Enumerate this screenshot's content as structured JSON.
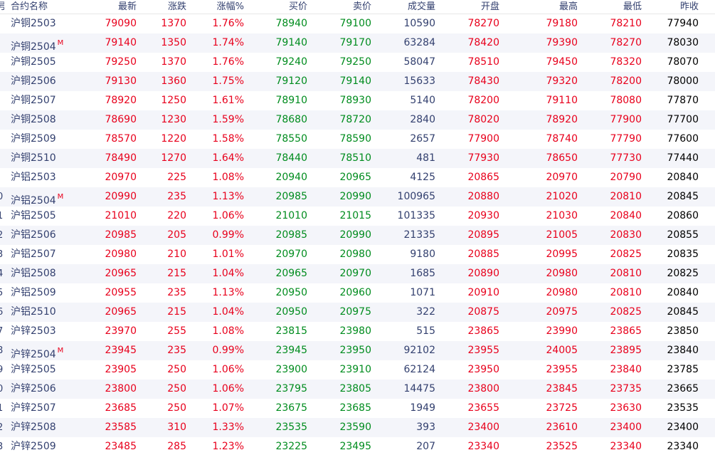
{
  "header": {
    "index": "号",
    "name": "合约名称",
    "last": "最新",
    "change": "涨跌",
    "change_pct": "涨幅%",
    "bid": "买价",
    "ask": "卖价",
    "volume": "成交量",
    "open": "开盘",
    "high": "最高",
    "low": "最低",
    "prev_close": "昨收"
  },
  "colors": {
    "up": "#e8001c",
    "bid_ask": "#008c1e",
    "volume": "#33406f",
    "header_text": "#33406f",
    "alt_row": "#f4f5fa"
  },
  "rows": [
    {
      "index": "",
      "name": "沪铜2503",
      "mark": "",
      "last": "79090",
      "change": "1370",
      "change_pct": "1.76%",
      "bid": "78940",
      "ask": "79100",
      "volume": "10590",
      "open": "78270",
      "high": "79180",
      "low": "78210",
      "prev_close": "77940"
    },
    {
      "index": "",
      "name": "沪铜2504",
      "mark": "M",
      "last": "79140",
      "change": "1350",
      "change_pct": "1.74%",
      "bid": "79140",
      "ask": "79170",
      "volume": "63284",
      "open": "78420",
      "high": "79390",
      "low": "78270",
      "prev_close": "78030"
    },
    {
      "index": "",
      "name": "沪铜2505",
      "mark": "",
      "last": "79250",
      "change": "1370",
      "change_pct": "1.76%",
      "bid": "79240",
      "ask": "79250",
      "volume": "58047",
      "open": "78510",
      "high": "79450",
      "low": "78320",
      "prev_close": "78070"
    },
    {
      "index": "",
      "name": "沪铜2506",
      "mark": "",
      "last": "79130",
      "change": "1360",
      "change_pct": "1.75%",
      "bid": "79120",
      "ask": "79140",
      "volume": "15633",
      "open": "78430",
      "high": "79320",
      "low": "78200",
      "prev_close": "78000"
    },
    {
      "index": "",
      "name": "沪铜2507",
      "mark": "",
      "last": "78920",
      "change": "1250",
      "change_pct": "1.61%",
      "bid": "78910",
      "ask": "78930",
      "volume": "5140",
      "open": "78200",
      "high": "79110",
      "low": "78080",
      "prev_close": "77870"
    },
    {
      "index": "",
      "name": "沪铜2508",
      "mark": "",
      "last": "78690",
      "change": "1230",
      "change_pct": "1.59%",
      "bid": "78680",
      "ask": "78720",
      "volume": "2840",
      "open": "78020",
      "high": "78920",
      "low": "77900",
      "prev_close": "77700"
    },
    {
      "index": "",
      "name": "沪铜2509",
      "mark": "",
      "last": "78570",
      "change": "1220",
      "change_pct": "1.58%",
      "bid": "78550",
      "ask": "78590",
      "volume": "2657",
      "open": "77900",
      "high": "78740",
      "low": "77790",
      "prev_close": "77600"
    },
    {
      "index": "",
      "name": "沪铜2510",
      "mark": "",
      "last": "78490",
      "change": "1270",
      "change_pct": "1.64%",
      "bid": "78440",
      "ask": "78510",
      "volume": "481",
      "open": "77930",
      "high": "78650",
      "low": "77730",
      "prev_close": "77440"
    },
    {
      "index": "",
      "name": "沪铝2503",
      "mark": "",
      "last": "20970",
      "change": "225",
      "change_pct": "1.08%",
      "bid": "20940",
      "ask": "20965",
      "volume": "4125",
      "open": "20865",
      "high": "20970",
      "low": "20790",
      "prev_close": "20840"
    },
    {
      "index": "0",
      "name": "沪铝2504",
      "mark": "M",
      "last": "20990",
      "change": "235",
      "change_pct": "1.13%",
      "bid": "20985",
      "ask": "20990",
      "volume": "100965",
      "open": "20880",
      "high": "21020",
      "low": "20810",
      "prev_close": "20845"
    },
    {
      "index": "1",
      "name": "沪铝2505",
      "mark": "",
      "last": "21010",
      "change": "220",
      "change_pct": "1.06%",
      "bid": "21010",
      "ask": "21015",
      "volume": "101335",
      "open": "20930",
      "high": "21030",
      "low": "20840",
      "prev_close": "20860"
    },
    {
      "index": "2",
      "name": "沪铝2506",
      "mark": "",
      "last": "20985",
      "change": "205",
      "change_pct": "0.99%",
      "bid": "20985",
      "ask": "20990",
      "volume": "21335",
      "open": "20895",
      "high": "21005",
      "low": "20830",
      "prev_close": "20855"
    },
    {
      "index": "3",
      "name": "沪铝2507",
      "mark": "",
      "last": "20980",
      "change": "210",
      "change_pct": "1.01%",
      "bid": "20970",
      "ask": "20980",
      "volume": "9180",
      "open": "20885",
      "high": "20995",
      "low": "20825",
      "prev_close": "20835"
    },
    {
      "index": "4",
      "name": "沪铝2508",
      "mark": "",
      "last": "20965",
      "change": "215",
      "change_pct": "1.04%",
      "bid": "20965",
      "ask": "20970",
      "volume": "1685",
      "open": "20890",
      "high": "20980",
      "low": "20810",
      "prev_close": "20825"
    },
    {
      "index": "5",
      "name": "沪铝2509",
      "mark": "",
      "last": "20955",
      "change": "235",
      "change_pct": "1.13%",
      "bid": "20950",
      "ask": "20960",
      "volume": "1071",
      "open": "20910",
      "high": "20980",
      "low": "20810",
      "prev_close": "20840"
    },
    {
      "index": "6",
      "name": "沪铝2510",
      "mark": "",
      "last": "20965",
      "change": "215",
      "change_pct": "1.04%",
      "bid": "20950",
      "ask": "20975",
      "volume": "322",
      "open": "20875",
      "high": "20975",
      "low": "20825",
      "prev_close": "20845"
    },
    {
      "index": "7",
      "name": "沪锌2503",
      "mark": "",
      "last": "23970",
      "change": "255",
      "change_pct": "1.08%",
      "bid": "23815",
      "ask": "23980",
      "volume": "515",
      "open": "23865",
      "high": "23990",
      "low": "23865",
      "prev_close": "23850"
    },
    {
      "index": "8",
      "name": "沪锌2504",
      "mark": "M",
      "last": "23945",
      "change": "235",
      "change_pct": "0.99%",
      "bid": "23945",
      "ask": "23950",
      "volume": "92102",
      "open": "23955",
      "high": "24005",
      "low": "23895",
      "prev_close": "23840"
    },
    {
      "index": "9",
      "name": "沪锌2505",
      "mark": "",
      "last": "23905",
      "change": "250",
      "change_pct": "1.06%",
      "bid": "23900",
      "ask": "23910",
      "volume": "62124",
      "open": "23950",
      "high": "23955",
      "low": "23840",
      "prev_close": "23785"
    },
    {
      "index": "0",
      "name": "沪锌2506",
      "mark": "",
      "last": "23800",
      "change": "250",
      "change_pct": "1.06%",
      "bid": "23795",
      "ask": "23805",
      "volume": "14475",
      "open": "23800",
      "high": "23845",
      "low": "23735",
      "prev_close": "23665"
    },
    {
      "index": "1",
      "name": "沪锌2507",
      "mark": "",
      "last": "23685",
      "change": "250",
      "change_pct": "1.07%",
      "bid": "23675",
      "ask": "23685",
      "volume": "1949",
      "open": "23655",
      "high": "23725",
      "low": "23630",
      "prev_close": "23535"
    },
    {
      "index": "2",
      "name": "沪锌2508",
      "mark": "",
      "last": "23585",
      "change": "310",
      "change_pct": "1.33%",
      "bid": "23535",
      "ask": "23590",
      "volume": "393",
      "open": "23400",
      "high": "23610",
      "low": "23400",
      "prev_close": "23400"
    },
    {
      "index": "3",
      "name": "沪锌2509",
      "mark": "",
      "last": "23485",
      "change": "285",
      "change_pct": "1.23%",
      "bid": "23225",
      "ask": "23495",
      "volume": "207",
      "open": "23340",
      "high": "23525",
      "low": "23340",
      "prev_close": "23340"
    }
  ]
}
